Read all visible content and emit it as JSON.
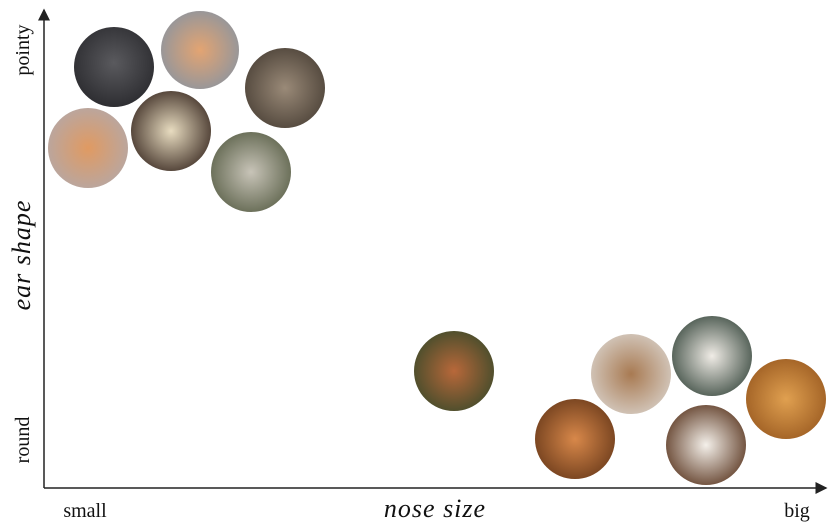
{
  "y_axis": {
    "label": "ear shape",
    "top": "pointy",
    "bottom": "round"
  },
  "x_axis": {
    "label": "nose size",
    "left": "small",
    "right": "big"
  }
}
